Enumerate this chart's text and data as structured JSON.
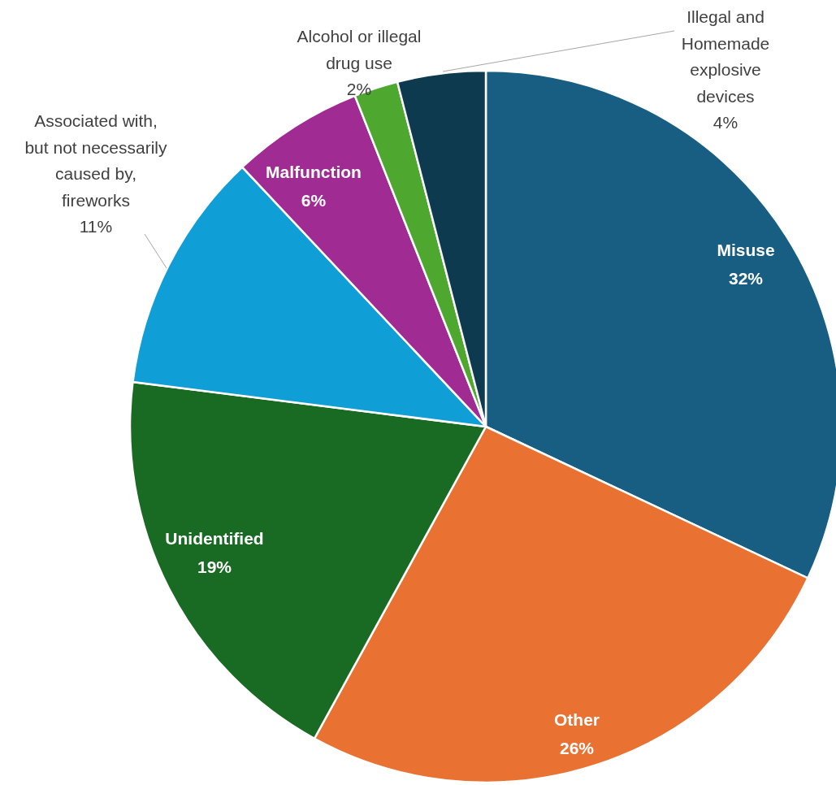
{
  "chart_data": {
    "type": "pie",
    "categories": [
      "Misuse",
      "Other",
      "Unidentified",
      "Associated with, but not necessarily caused by, fireworks",
      "Malfunction",
      "Alcohol or illegal drug use",
      "Illegal and Homemade explosive devices"
    ],
    "values": [
      32,
      26,
      19,
      11,
      6,
      2,
      4
    ],
    "colors": [
      "#175e82",
      "#e97132",
      "#196b24",
      "#0f9ed5",
      "#a02b93",
      "#4ea72e",
      "#0e3a50"
    ],
    "value_labels": [
      "32%",
      "26%",
      "19%",
      "11%",
      "6%",
      "2%",
      "4%"
    ]
  }
}
